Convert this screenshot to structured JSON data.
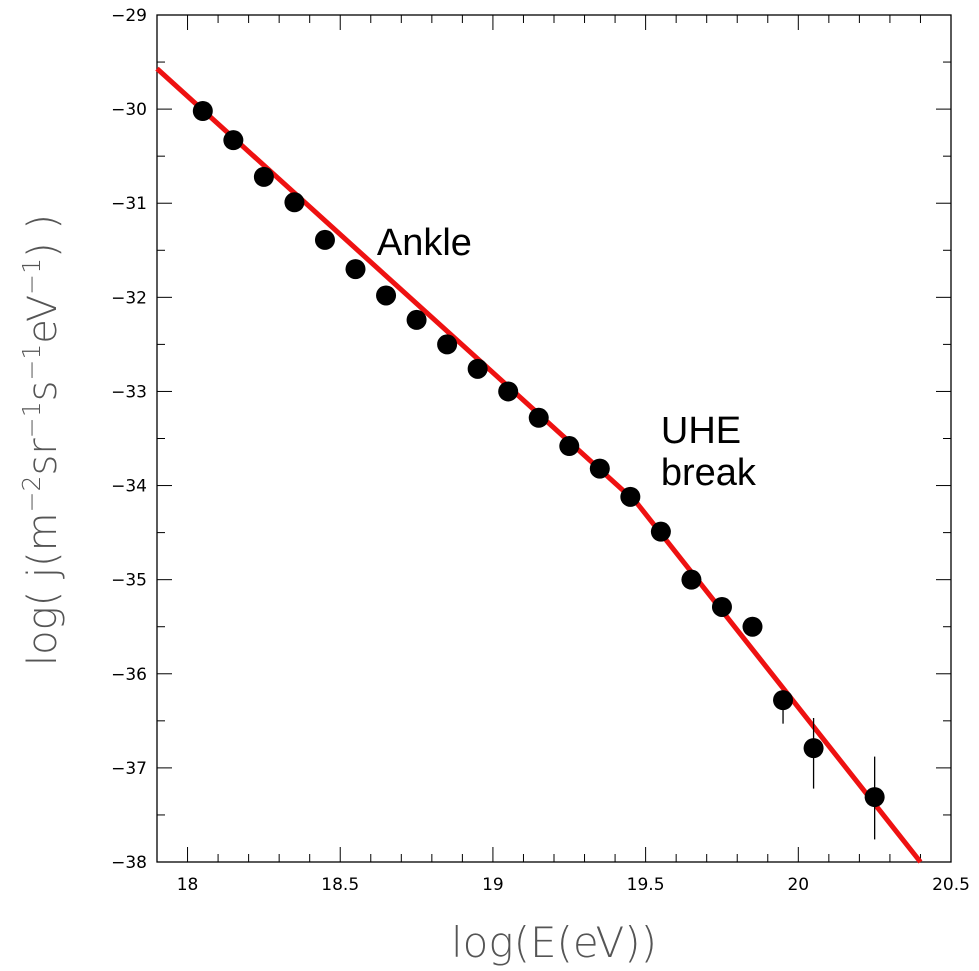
{
  "chart_data": {
    "type": "scatter",
    "title": "",
    "xlabel": "log(E(eV))",
    "ylabel_parts": {
      "prefix": "log( j(m",
      "sup1": "−2",
      "mid1": "sr",
      "sup2": "−1",
      "mid2": "s",
      "sup3": "−1",
      "mid3": "eV",
      "sup4": "−1",
      "suffix": ") )"
    },
    "xlim": [
      17.9,
      20.5
    ],
    "ylim": [
      -38,
      -29
    ],
    "x_ticks": [
      18,
      18.5,
      19,
      19.5,
      20,
      20.5
    ],
    "x_tick_labels": [
      "18",
      "18.5",
      "19",
      "19.5",
      "20",
      "20.5"
    ],
    "y_ticks": [
      -29,
      -30,
      -31,
      -32,
      -33,
      -34,
      -35,
      -36,
      -37,
      -38
    ],
    "y_tick_labels": [
      "−29",
      "−30",
      "−31",
      "−32",
      "−33",
      "−34",
      "−35",
      "−36",
      "−37",
      "−38"
    ],
    "grid": false,
    "points": [
      {
        "x": 18.05,
        "y": -30.02
      },
      {
        "x": 18.15,
        "y": -30.33
      },
      {
        "x": 18.25,
        "y": -30.72
      },
      {
        "x": 18.35,
        "y": -30.99
      },
      {
        "x": 18.45,
        "y": -31.39
      },
      {
        "x": 18.55,
        "y": -31.7
      },
      {
        "x": 18.65,
        "y": -31.98
      },
      {
        "x": 18.75,
        "y": -32.24
      },
      {
        "x": 18.85,
        "y": -32.5
      },
      {
        "x": 18.95,
        "y": -32.76
      },
      {
        "x": 19.05,
        "y": -33.0
      },
      {
        "x": 19.15,
        "y": -33.28
      },
      {
        "x": 19.25,
        "y": -33.58
      },
      {
        "x": 19.35,
        "y": -33.82
      },
      {
        "x": 19.45,
        "y": -34.12
      },
      {
        "x": 19.55,
        "y": -34.49
      },
      {
        "x": 19.65,
        "y": -35.0
      },
      {
        "x": 19.75,
        "y": -35.29
      },
      {
        "x": 19.85,
        "y": -35.5
      },
      {
        "x": 19.95,
        "y": -36.28,
        "err_low": 0.25,
        "err_high": 0.1
      },
      {
        "x": 20.05,
        "y": -36.79,
        "err_low": 0.43,
        "err_high": 0.32
      },
      {
        "x": 20.25,
        "y": -37.31,
        "err_low": 0.45,
        "err_high": 0.43
      }
    ],
    "fit_line": {
      "color": "#ee1111",
      "x": [
        17.9,
        19.47,
        20.4
      ],
      "y": [
        -29.57,
        -34.18,
        -38.0
      ]
    },
    "point_color": "#000000",
    "annotations": [
      {
        "id": "ankle",
        "lines": [
          "Ankle"
        ],
        "x": 18.62,
        "y": -31.55
      },
      {
        "id": "uhe-break",
        "lines": [
          "UHE",
          "break"
        ],
        "x": 19.55,
        "y": -33.55
      }
    ]
  }
}
